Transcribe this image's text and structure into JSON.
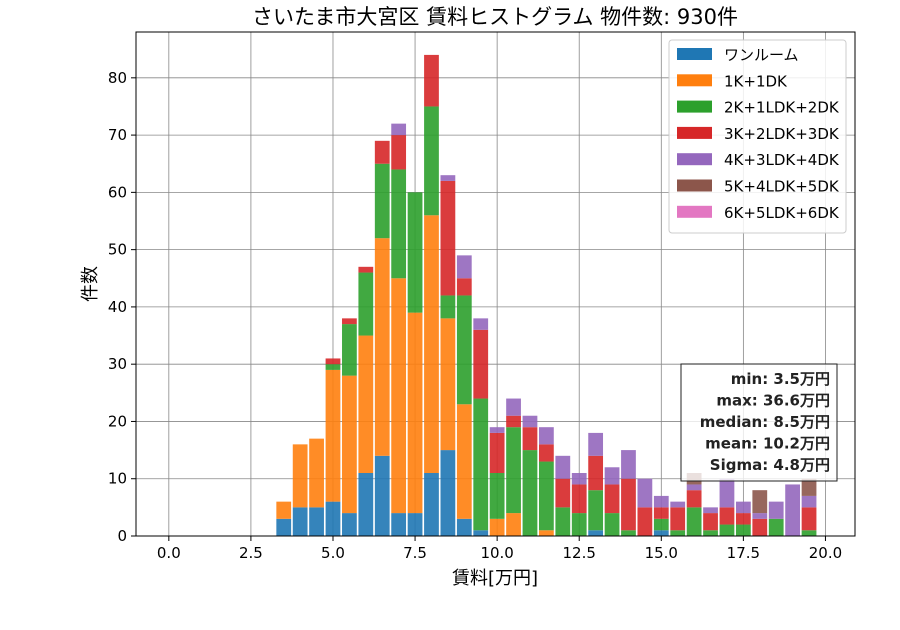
{
  "chart_data": {
    "type": "bar",
    "stacked": true,
    "title": "さいたま市大宮区 賃料ヒストグラム 物件数: 930件",
    "xlabel": "賃料[万円]",
    "ylabel": "件数",
    "xlim": [
      -1.0,
      20.9
    ],
    "ylim": [
      0,
      88
    ],
    "xticks": [
      0.0,
      2.5,
      5.0,
      7.5,
      10.0,
      12.5,
      15.0,
      17.5,
      20.0
    ],
    "xtick_labels": [
      "0.0",
      "2.5",
      "5.0",
      "7.5",
      "10.0",
      "12.5",
      "15.0",
      "17.5",
      "20.0"
    ],
    "yticks": [
      0,
      10,
      20,
      30,
      40,
      50,
      60,
      70,
      80
    ],
    "ytick_labels": [
      "0",
      "10",
      "20",
      "30",
      "40",
      "50",
      "60",
      "70",
      "80"
    ],
    "grid": true,
    "legend_position": "top-right",
    "bin_width": 0.5,
    "x": [
      3.5,
      4.0,
      4.5,
      5.0,
      5.5,
      6.0,
      6.5,
      7.0,
      7.5,
      8.0,
      8.5,
      9.0,
      9.5,
      10.0,
      10.5,
      11.0,
      11.5,
      12.0,
      12.5,
      13.0,
      13.5,
      14.0,
      14.5,
      15.0,
      15.5,
      16.0,
      16.5,
      17.0,
      17.5,
      18.0,
      18.5,
      19.0,
      19.5
    ],
    "series": [
      {
        "name": "ワンルーム",
        "color": "#1f77b4",
        "values": [
          3,
          5,
          5,
          6,
          4,
          11,
          14,
          4,
          4,
          11,
          15,
          3,
          1,
          0,
          0,
          0,
          0,
          0,
          0,
          1,
          0,
          0,
          0,
          1,
          0,
          0,
          0,
          0,
          0,
          0,
          0,
          0,
          0
        ]
      },
      {
        "name": "1K+1DK",
        "color": "#ff7f0e",
        "values": [
          3,
          11,
          12,
          23,
          24,
          24,
          38,
          41,
          35,
          45,
          23,
          20,
          0,
          3,
          4,
          0,
          1,
          0,
          0,
          0,
          0,
          0,
          0,
          0,
          0,
          0,
          0,
          0,
          0,
          0,
          0,
          0,
          0
        ]
      },
      {
        "name": "2K+1LDK+2DK",
        "color": "#2ca02c",
        "values": [
          0,
          0,
          0,
          1,
          9,
          11,
          13,
          19,
          21,
          19,
          4,
          19,
          23,
          8,
          15,
          15,
          12,
          5,
          4,
          7,
          4,
          1,
          0,
          2,
          1,
          5,
          1,
          2,
          2,
          0,
          3,
          0,
          1
        ]
      },
      {
        "name": "3K+2LDK+3DK",
        "color": "#d62728",
        "values": [
          0,
          0,
          0,
          1,
          1,
          1,
          4,
          6,
          0,
          9,
          20,
          3,
          12,
          7,
          2,
          4,
          3,
          5,
          5,
          6,
          5,
          9,
          5,
          2,
          4,
          3,
          3,
          3,
          2,
          3,
          0,
          0,
          4
        ]
      },
      {
        "name": "4K+3LDK+4DK",
        "color": "#9467bd",
        "values": [
          0,
          0,
          0,
          0,
          0,
          0,
          0,
          2,
          0,
          0,
          1,
          4,
          2,
          1,
          3,
          2,
          3,
          4,
          2,
          4,
          3,
          5,
          5,
          2,
          1,
          1,
          1,
          5,
          2,
          1,
          3,
          9,
          2
        ]
      },
      {
        "name": "5K+4LDK+5DK",
        "color": "#8c564b",
        "values": [
          0,
          0,
          0,
          0,
          0,
          0,
          0,
          0,
          0,
          0,
          0,
          0,
          0,
          0,
          0,
          0,
          0,
          0,
          0,
          0,
          0,
          0,
          0,
          0,
          0,
          2,
          0,
          0,
          0,
          4,
          0,
          0,
          3
        ]
      },
      {
        "name": "6K+5LDK+6DK",
        "color": "#e377c2",
        "values": [
          0,
          0,
          0,
          0,
          0,
          0,
          0,
          0,
          0,
          0,
          0,
          0,
          0,
          0,
          0,
          0,
          0,
          0,
          0,
          0,
          0,
          0,
          0,
          0,
          0,
          0,
          0,
          0,
          0,
          0,
          0,
          0,
          0
        ]
      }
    ],
    "annotations": {
      "stats": [
        "min: 3.5万円",
        "max: 36.6万円",
        "median: 8.5万円",
        "mean: 10.2万円",
        "Sigma: 4.8万円"
      ]
    }
  }
}
